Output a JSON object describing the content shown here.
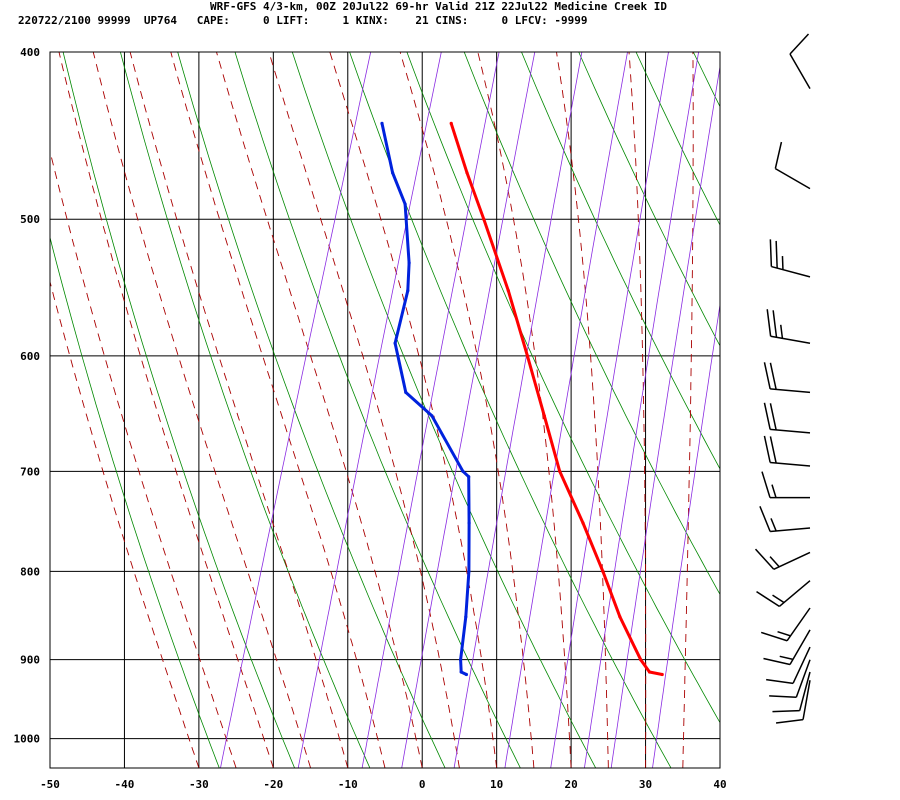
{
  "header": {
    "title": "WRF-GFS 4/3-km, 00Z 20Jul22 69-hr Valid 21Z 22Jul22 Medicine Creek ID",
    "indices": "220722/2100 99999  UP764   CAPE:     0 LIFT:     1 KINX:    21 CINS:     0 LFCV: -9999"
  },
  "chart_data": {
    "type": "line",
    "title": "WRF-GFS 4/3-km, 00Z 20Jul22 69-hr Valid 21Z 22Jul22 Medicine Creek ID",
    "xlabel": "",
    "ylabel": "",
    "x_ticks": [
      -50,
      -40,
      -30,
      -20,
      -10,
      0,
      10,
      20,
      30,
      40
    ],
    "y_ticks": [
      400,
      500,
      600,
      700,
      800,
      900,
      1000
    ],
    "xlim": [
      -50,
      40
    ],
    "ylim": [
      1040,
      400
    ],
    "skew_deg_per_log_unit": 31.5,
    "colors": {
      "temperature": "#ff0000",
      "dewpoint": "#0022dd",
      "dry_adiabat": "#008800",
      "moist_adiabat": "#aa0000",
      "mixing_ratio": "#8a2be2"
    },
    "series": [
      {
        "id": "temperature",
        "points": [
          {
            "p": 918,
            "t": 28.3
          },
          {
            "p": 915,
            "t": 26.5
          },
          {
            "p": 900,
            "t": 24.8
          },
          {
            "p": 850,
            "t": 20.2
          },
          {
            "p": 800,
            "t": 16.0
          },
          {
            "p": 750,
            "t": 11.3
          },
          {
            "p": 700,
            "t": 6.0
          },
          {
            "p": 650,
            "t": 1.6
          },
          {
            "p": 600,
            "t": -3.2
          },
          {
            "p": 550,
            "t": -8.5
          },
          {
            "p": 500,
            "t": -14.8
          },
          {
            "p": 470,
            "t": -19.0
          },
          {
            "p": 440,
            "t": -23.2
          }
        ]
      },
      {
        "id": "dewpoint",
        "points": [
          {
            "p": 918,
            "t": 2.0
          },
          {
            "p": 915,
            "t": 1.2
          },
          {
            "p": 900,
            "t": 0.6
          },
          {
            "p": 850,
            "t": -0.5
          },
          {
            "p": 800,
            "t": -2.0
          },
          {
            "p": 750,
            "t": -4.0
          },
          {
            "p": 705,
            "t": -6.0
          },
          {
            "p": 700,
            "t": -7.0
          },
          {
            "p": 650,
            "t": -13.5
          },
          {
            "p": 630,
            "t": -18.0
          },
          {
            "p": 590,
            "t": -21.5
          },
          {
            "p": 550,
            "t": -22.0
          },
          {
            "p": 530,
            "t": -23.0
          },
          {
            "p": 490,
            "t": -26.0
          },
          {
            "p": 470,
            "t": -29.0
          },
          {
            "p": 440,
            "t": -32.5
          }
        ]
      }
    ],
    "wind_barbs": [
      {
        "p": 420,
        "dir": 330,
        "speed": 10
      },
      {
        "p": 480,
        "dir": 300,
        "speed": 10
      },
      {
        "p": 540,
        "dir": 285,
        "speed": 25
      },
      {
        "p": 590,
        "dir": 280,
        "speed": 25
      },
      {
        "p": 630,
        "dir": 275,
        "speed": 20
      },
      {
        "p": 665,
        "dir": 275,
        "speed": 20
      },
      {
        "p": 695,
        "dir": 275,
        "speed": 20
      },
      {
        "p": 725,
        "dir": 270,
        "speed": 15
      },
      {
        "p": 755,
        "dir": 265,
        "speed": 15
      },
      {
        "p": 780,
        "dir": 245,
        "speed": 15
      },
      {
        "p": 810,
        "dir": 230,
        "speed": 15
      },
      {
        "p": 840,
        "dir": 215,
        "speed": 15
      },
      {
        "p": 865,
        "dir": 210,
        "speed": 15
      },
      {
        "p": 885,
        "dir": 205,
        "speed": 10
      },
      {
        "p": 900,
        "dir": 200,
        "speed": 10
      },
      {
        "p": 915,
        "dir": 195,
        "speed": 10
      },
      {
        "p": 925,
        "dir": 190,
        "speed": 10
      }
    ]
  }
}
